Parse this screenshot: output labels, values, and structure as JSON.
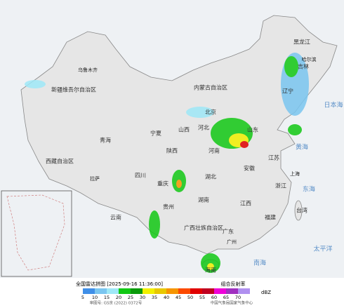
{
  "legend": {
    "title": "全国雷达拼图 [2025-09-16 11:36:00]",
    "product": "组合反射率",
    "unit": "dBZ",
    "levels": [
      5,
      10,
      15,
      20,
      25,
      30,
      35,
      40,
      45,
      50,
      55,
      60,
      65,
      70
    ],
    "colors": [
      "#3f8fe8",
      "#7ac6f0",
      "#9ee8f7",
      "#12c814",
      "#0a9a0a",
      "#f2f000",
      "#e8c800",
      "#f69500",
      "#fc4a00",
      "#e00000",
      "#c00020",
      "#ee00d8",
      "#a030c0",
      "#b090f0"
    ]
  },
  "footer": {
    "approval": "审图号: GS京 (2022) 0372号",
    "agency": "中国气象局国家气象中心"
  },
  "places": [
    "新疆维吾尔自治区",
    "西藏自治区",
    "青海",
    "内蒙古自治区",
    "黑龙江",
    "吉林",
    "辽宁",
    "北京",
    "河北",
    "山西",
    "陕西",
    "宁夏",
    "四川",
    "重庆",
    "湖北",
    "湖南",
    "河南",
    "山东",
    "江苏",
    "安徽",
    "浙江",
    "江西",
    "福建",
    "广东",
    "广西壮族自治区",
    "贵州",
    "云南",
    "海南",
    "台湾",
    "乌鲁木齐",
    "拉萨",
    "哈尔滨",
    "上海",
    "广州"
  ],
  "seas": [
    "黄海",
    "东海",
    "南海",
    "太平洋",
    "日本海"
  ]
}
